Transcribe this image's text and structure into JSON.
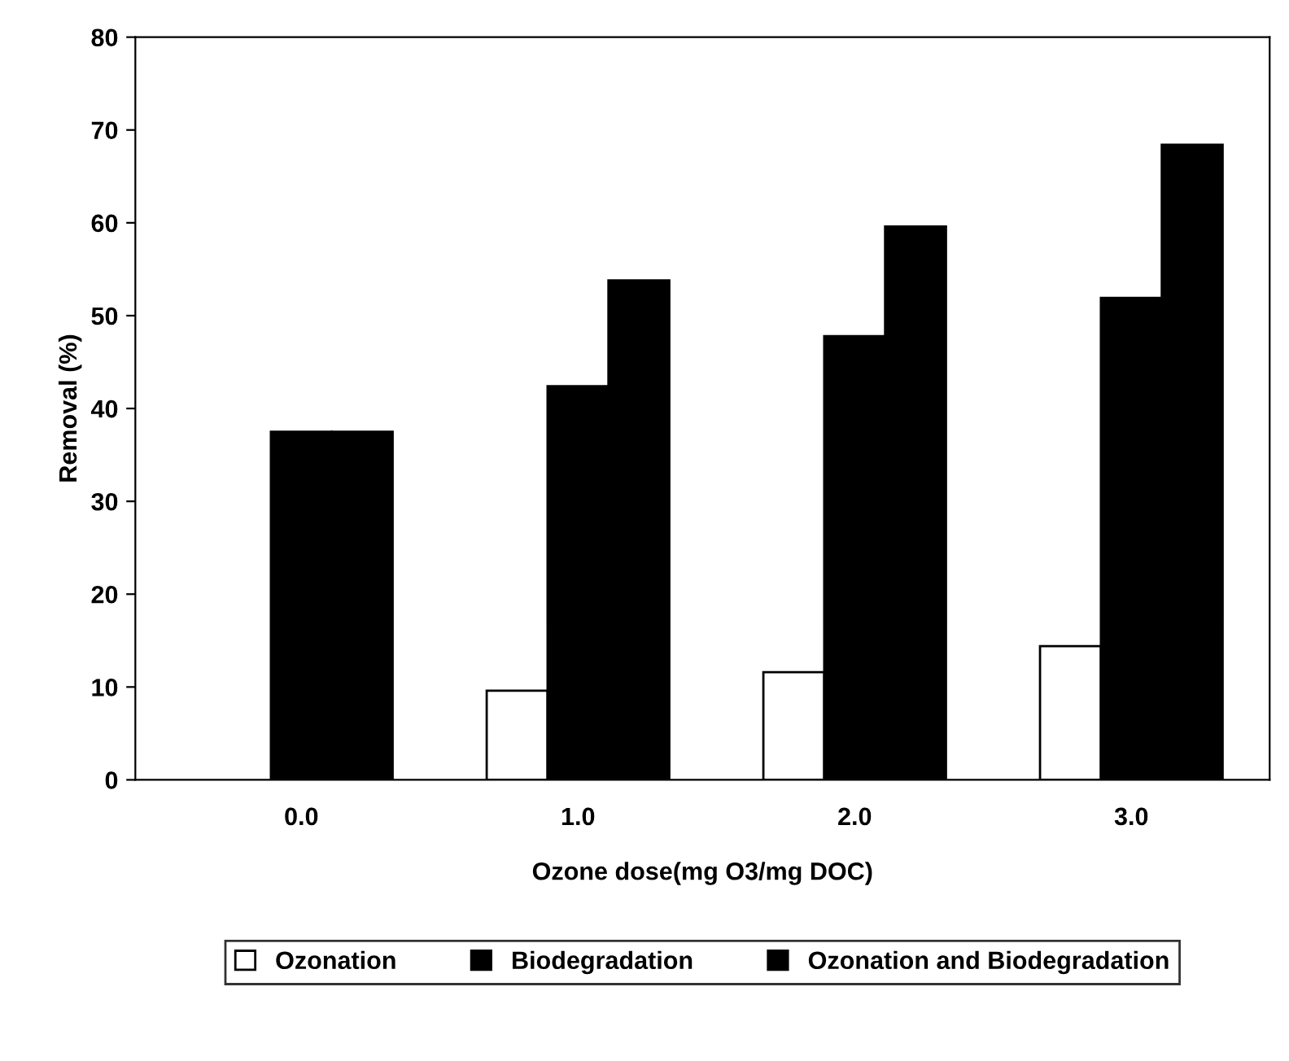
{
  "chart_data": {
    "type": "bar",
    "xlabel": "Ozone dose(mg O3/mg DOC)",
    "ylabel": "Removal (%)",
    "categories": [
      "0.0",
      "1.0",
      "2.0",
      "3.0"
    ],
    "series": [
      {
        "name": "Ozonation",
        "color": "#ffffff",
        "values": [
          null,
          9.6,
          11.6,
          14.4
        ]
      },
      {
        "name": "Biodegradation",
        "color": "#000000",
        "values": [
          37.5,
          42.4,
          47.8,
          51.9
        ]
      },
      {
        "name": "Ozonation and Biodegradation",
        "color": "#000000",
        "values": [
          37.5,
          53.8,
          59.6,
          68.4
        ]
      }
    ],
    "ylim": [
      0,
      80
    ],
    "yticks": [
      0,
      10,
      20,
      30,
      40,
      50,
      60,
      70,
      80
    ],
    "grid": false,
    "legend": "bottom"
  }
}
